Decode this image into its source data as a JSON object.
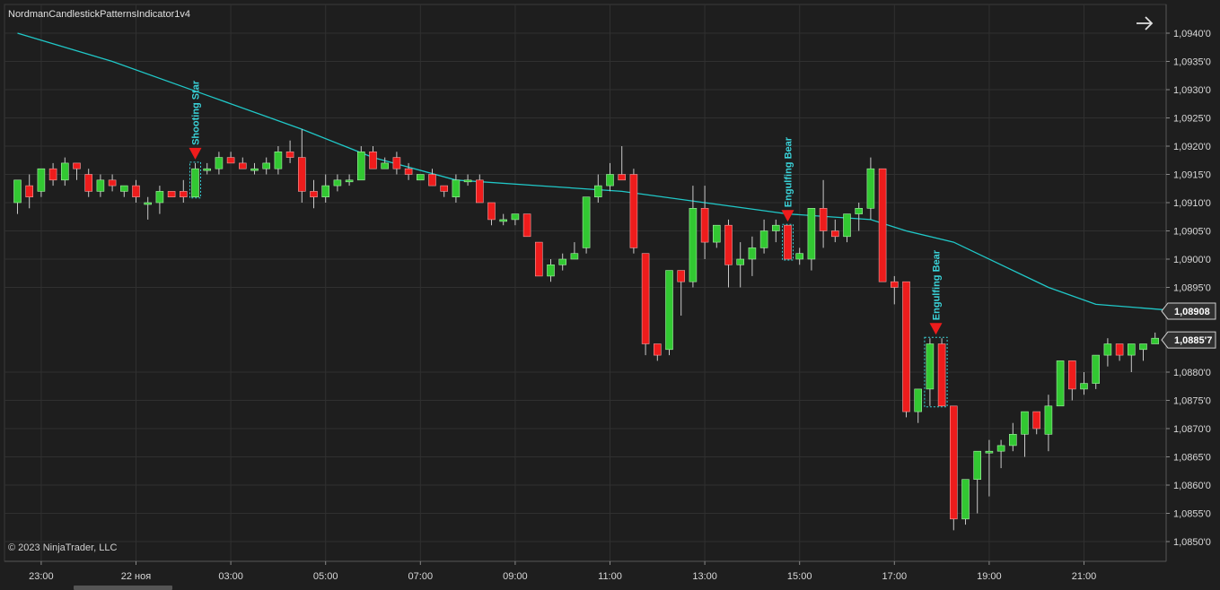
{
  "app": {
    "indicator_title": "NordmanCandlestickPatternsIndicator1v4",
    "copyright": "© 2023 NinjaTrader, LLC",
    "icons": {
      "navigate": "arrow-right-icon"
    }
  },
  "colors": {
    "background": "#1e1e1e",
    "grid": "#303030",
    "bull": "#32c832",
    "bear": "#ee1c1c",
    "wick": "#c8c8c8",
    "ma": "#20c8c8",
    "pattern_marker": "#ee1c1c",
    "pattern_text": "#3ad2d8",
    "axis_text": "#d8d8d8",
    "label_bg": "#303030"
  },
  "chart_data": {
    "type": "candlestick",
    "y_range": [
      1.0848,
      1.0943
    ],
    "y_ticks": [
      {
        "value": 1.094,
        "label": "1,0940'0"
      },
      {
        "value": 1.0935,
        "label": "1,0935'0"
      },
      {
        "value": 1.093,
        "label": "1,0930'0"
      },
      {
        "value": 1.0925,
        "label": "1,0925'0"
      },
      {
        "value": 1.092,
        "label": "1,0920'0"
      },
      {
        "value": 1.0915,
        "label": "1,0915'0"
      },
      {
        "value": 1.091,
        "label": "1,0910'0"
      },
      {
        "value": 1.0905,
        "label": "1,0905'0"
      },
      {
        "value": 1.09,
        "label": "1,0900'0"
      },
      {
        "value": 1.0895,
        "label": "1,0895'0"
      },
      {
        "value": 1.088,
        "label": "1,0880'0"
      },
      {
        "value": 1.0875,
        "label": "1,0875'0"
      },
      {
        "value": 1.087,
        "label": "1,0870'0"
      },
      {
        "value": 1.0865,
        "label": "1,0865'0"
      },
      {
        "value": 1.086,
        "label": "1,0860'0"
      },
      {
        "value": 1.0855,
        "label": "1,0855'0"
      },
      {
        "value": 1.085,
        "label": "1,0850'0"
      }
    ],
    "x_ticks": [
      {
        "bar": 2,
        "label": "23:00"
      },
      {
        "bar": 10,
        "label": "22 ноя"
      },
      {
        "bar": 18,
        "label": "03:00"
      },
      {
        "bar": 26,
        "label": "05:00"
      },
      {
        "bar": 34,
        "label": "07:00"
      },
      {
        "bar": 42,
        "label": "09:00"
      },
      {
        "bar": 50,
        "label": "11:00"
      },
      {
        "bar": 58,
        "label": "13:00"
      },
      {
        "bar": 66,
        "label": "15:00"
      },
      {
        "bar": 74,
        "label": "17:00"
      },
      {
        "bar": 82,
        "label": "19:00"
      },
      {
        "bar": 90,
        "label": "21:00"
      }
    ],
    "price_labels": [
      {
        "value": 1.08908,
        "label": "1,08908"
      },
      {
        "value": 1.08857,
        "label": "1,0885'7"
      }
    ],
    "candles": [
      [
        1.091,
        1.0914,
        1.0908,
        1.0914
      ],
      [
        1.0913,
        1.0915,
        1.0909,
        1.0911
      ],
      [
        1.0912,
        1.0916,
        1.0911,
        1.0916
      ],
      [
        1.0916,
        1.0917,
        1.0913,
        1.0914
      ],
      [
        1.0914,
        1.0918,
        1.0913,
        1.0917
      ],
      [
        1.0917,
        1.0917,
        1.0914,
        1.0916
      ],
      [
        1.0915,
        1.0916,
        1.0911,
        1.0912
      ],
      [
        1.0912,
        1.0915,
        1.0911,
        1.0914
      ],
      [
        1.0914,
        1.0915,
        1.0912,
        1.0913
      ],
      [
        1.0912,
        1.0913,
        1.0911,
        1.0913
      ],
      [
        1.0913,
        1.0914,
        1.091,
        1.0911
      ],
      [
        1.091,
        1.0911,
        1.0907,
        1.091
      ],
      [
        1.091,
        1.0913,
        1.0908,
        1.0912
      ],
      [
        1.0912,
        1.0912,
        1.0911,
        1.0911
      ],
      [
        1.0912,
        1.0914,
        1.091,
        1.0911
      ],
      [
        1.0911,
        1.0917,
        1.0911,
        1.0916
      ],
      [
        1.0916,
        1.0917,
        1.0915,
        1.0916
      ],
      [
        1.0916,
        1.0919,
        1.0915,
        1.0918
      ],
      [
        1.0918,
        1.0919,
        1.0917,
        1.0917
      ],
      [
        1.0917,
        1.0918,
        1.0916,
        1.0916
      ],
      [
        1.0916,
        1.0917,
        1.0915,
        1.0916
      ],
      [
        1.0916,
        1.0918,
        1.0915,
        1.0917
      ],
      [
        1.0916,
        1.092,
        1.0915,
        1.0919
      ],
      [
        1.0919,
        1.0921,
        1.0917,
        1.0918
      ],
      [
        1.0918,
        1.0923,
        1.091,
        1.0912
      ],
      [
        1.0912,
        1.0914,
        1.0909,
        1.0911
      ],
      [
        1.0911,
        1.0915,
        1.091,
        1.0913
      ],
      [
        1.0913,
        1.0915,
        1.0912,
        1.0914
      ],
      [
        1.0914,
        1.0915,
        1.0913,
        1.0914
      ],
      [
        1.0914,
        1.092,
        1.0914,
        1.0919
      ],
      [
        1.0919,
        1.092,
        1.0916,
        1.0916
      ],
      [
        1.0916,
        1.0918,
        1.0916,
        1.0917
      ],
      [
        1.0918,
        1.0919,
        1.0915,
        1.0916
      ],
      [
        1.0916,
        1.0917,
        1.0914,
        1.0915
      ],
      [
        1.0914,
        1.0915,
        1.0914,
        1.0915
      ],
      [
        1.0915,
        1.0916,
        1.0913,
        1.0913
      ],
      [
        1.0913,
        1.0913,
        1.0911,
        1.0912
      ],
      [
        1.0911,
        1.0915,
        1.091,
        1.0914
      ],
      [
        1.0914,
        1.0915,
        1.0913,
        1.0914
      ],
      [
        1.0914,
        1.0915,
        1.091,
        1.091
      ],
      [
        1.091,
        1.091,
        1.0906,
        1.0907
      ],
      [
        1.0907,
        1.0908,
        1.0906,
        1.0907
      ],
      [
        1.0907,
        1.0908,
        1.0906,
        1.0908
      ],
      [
        1.0908,
        1.0908,
        1.0904,
        1.0904
      ],
      [
        1.0903,
        1.0903,
        1.0897,
        1.0897
      ],
      [
        1.0897,
        1.09,
        1.0896,
        1.0899
      ],
      [
        1.0899,
        1.0901,
        1.0898,
        1.09
      ],
      [
        1.09,
        1.0903,
        1.09,
        1.0901
      ],
      [
        1.0902,
        1.0911,
        1.0901,
        1.0911
      ],
      [
        1.0911,
        1.0915,
        1.091,
        1.0913
      ],
      [
        1.0913,
        1.0917,
        1.0912,
        1.0915
      ],
      [
        1.0915,
        1.092,
        1.0914,
        1.0914
      ],
      [
        1.0915,
        1.0916,
        1.0901,
        1.0902
      ],
      [
        1.0901,
        1.0901,
        1.0883,
        1.0885
      ],
      [
        1.0885,
        1.0885,
        1.0882,
        1.0883
      ],
      [
        1.0884,
        1.0898,
        1.0883,
        1.0898
      ],
      [
        1.0898,
        1.0898,
        1.089,
        1.0896
      ],
      [
        1.0896,
        1.0913,
        1.0895,
        1.0909
      ],
      [
        1.0909,
        1.0913,
        1.09,
        1.0903
      ],
      [
        1.0903,
        1.0906,
        1.0902,
        1.0906
      ],
      [
        1.0906,
        1.0907,
        1.0895,
        1.0899
      ],
      [
        1.0899,
        1.0903,
        1.0895,
        1.09
      ],
      [
        1.09,
        1.0904,
        1.0897,
        1.0902
      ],
      [
        1.0902,
        1.0907,
        1.0901,
        1.0905
      ],
      [
        1.0905,
        1.0907,
        1.0903,
        1.0906
      ],
      [
        1.0906,
        1.0906,
        1.09,
        1.09
      ],
      [
        1.09,
        1.0902,
        1.0899,
        1.0901
      ],
      [
        1.09,
        1.0909,
        1.0898,
        1.0909
      ],
      [
        1.0909,
        1.0914,
        1.0902,
        1.0905
      ],
      [
        1.0905,
        1.0907,
        1.0903,
        1.0904
      ],
      [
        1.0904,
        1.0908,
        1.0903,
        1.0908
      ],
      [
        1.0908,
        1.091,
        1.0905,
        1.0909
      ],
      [
        1.0909,
        1.0918,
        1.0907,
        1.0916
      ],
      [
        1.0916,
        1.0916,
        1.0896,
        1.0896
      ],
      [
        1.0896,
        1.0897,
        1.0892,
        1.0895
      ],
      [
        1.0896,
        1.0896,
        1.0872,
        1.0873
      ],
      [
        1.0873,
        1.0877,
        1.0871,
        1.0877
      ],
      [
        1.0877,
        1.0886,
        1.0874,
        1.0885
      ],
      [
        1.0885,
        1.0886,
        1.0874,
        1.0874
      ],
      [
        1.0874,
        1.0874,
        1.0852,
        1.0854
      ],
      [
        1.0854,
        1.0861,
        1.0853,
        1.0861
      ],
      [
        1.0861,
        1.0866,
        1.0855,
        1.0866
      ],
      [
        1.0866,
        1.0868,
        1.0858,
        1.0866
      ],
      [
        1.0866,
        1.0868,
        1.0863,
        1.0867
      ],
      [
        1.0867,
        1.0871,
        1.0866,
        1.0869
      ],
      [
        1.0869,
        1.0873,
        1.0865,
        1.0873
      ],
      [
        1.0873,
        1.0873,
        1.0869,
        1.087
      ],
      [
        1.0869,
        1.0876,
        1.0866,
        1.0874
      ],
      [
        1.0874,
        1.0882,
        1.0874,
        1.0882
      ],
      [
        1.0882,
        1.0882,
        1.0875,
        1.0877
      ],
      [
        1.0877,
        1.088,
        1.0876,
        1.0878
      ],
      [
        1.0878,
        1.0883,
        1.0877,
        1.0883
      ],
      [
        1.0883,
        1.0886,
        1.0881,
        1.0885
      ],
      [
        1.0885,
        1.0885,
        1.0882,
        1.0883
      ],
      [
        1.0883,
        1.0885,
        1.088,
        1.0885
      ],
      [
        1.0884,
        1.0885,
        1.0882,
        1.0885
      ],
      [
        1.0885,
        1.0887,
        1.0885,
        1.0886
      ]
    ],
    "ma_line": [
      [
        0,
        1.094
      ],
      [
        8,
        1.0935
      ],
      [
        16,
        1.0929
      ],
      [
        24,
        1.0923
      ],
      [
        30,
        1.0918
      ],
      [
        37,
        1.0914
      ],
      [
        44,
        1.0913
      ],
      [
        51,
        1.0912
      ],
      [
        58,
        1.091
      ],
      [
        65,
        1.0908
      ],
      [
        72,
        1.0907
      ],
      [
        75,
        1.0905
      ],
      [
        79,
        1.0903
      ],
      [
        83,
        1.0899
      ],
      [
        87,
        1.0895
      ],
      [
        91,
        1.0892
      ],
      [
        97,
        1.0891
      ]
    ],
    "patterns": [
      {
        "label": "Shooting Star",
        "bars": [
          15
        ]
      },
      {
        "label": "Engulfing Bear",
        "bars": [
          65
        ]
      },
      {
        "label": "Engulfing Bear",
        "bars": [
          77,
          78
        ]
      }
    ]
  }
}
